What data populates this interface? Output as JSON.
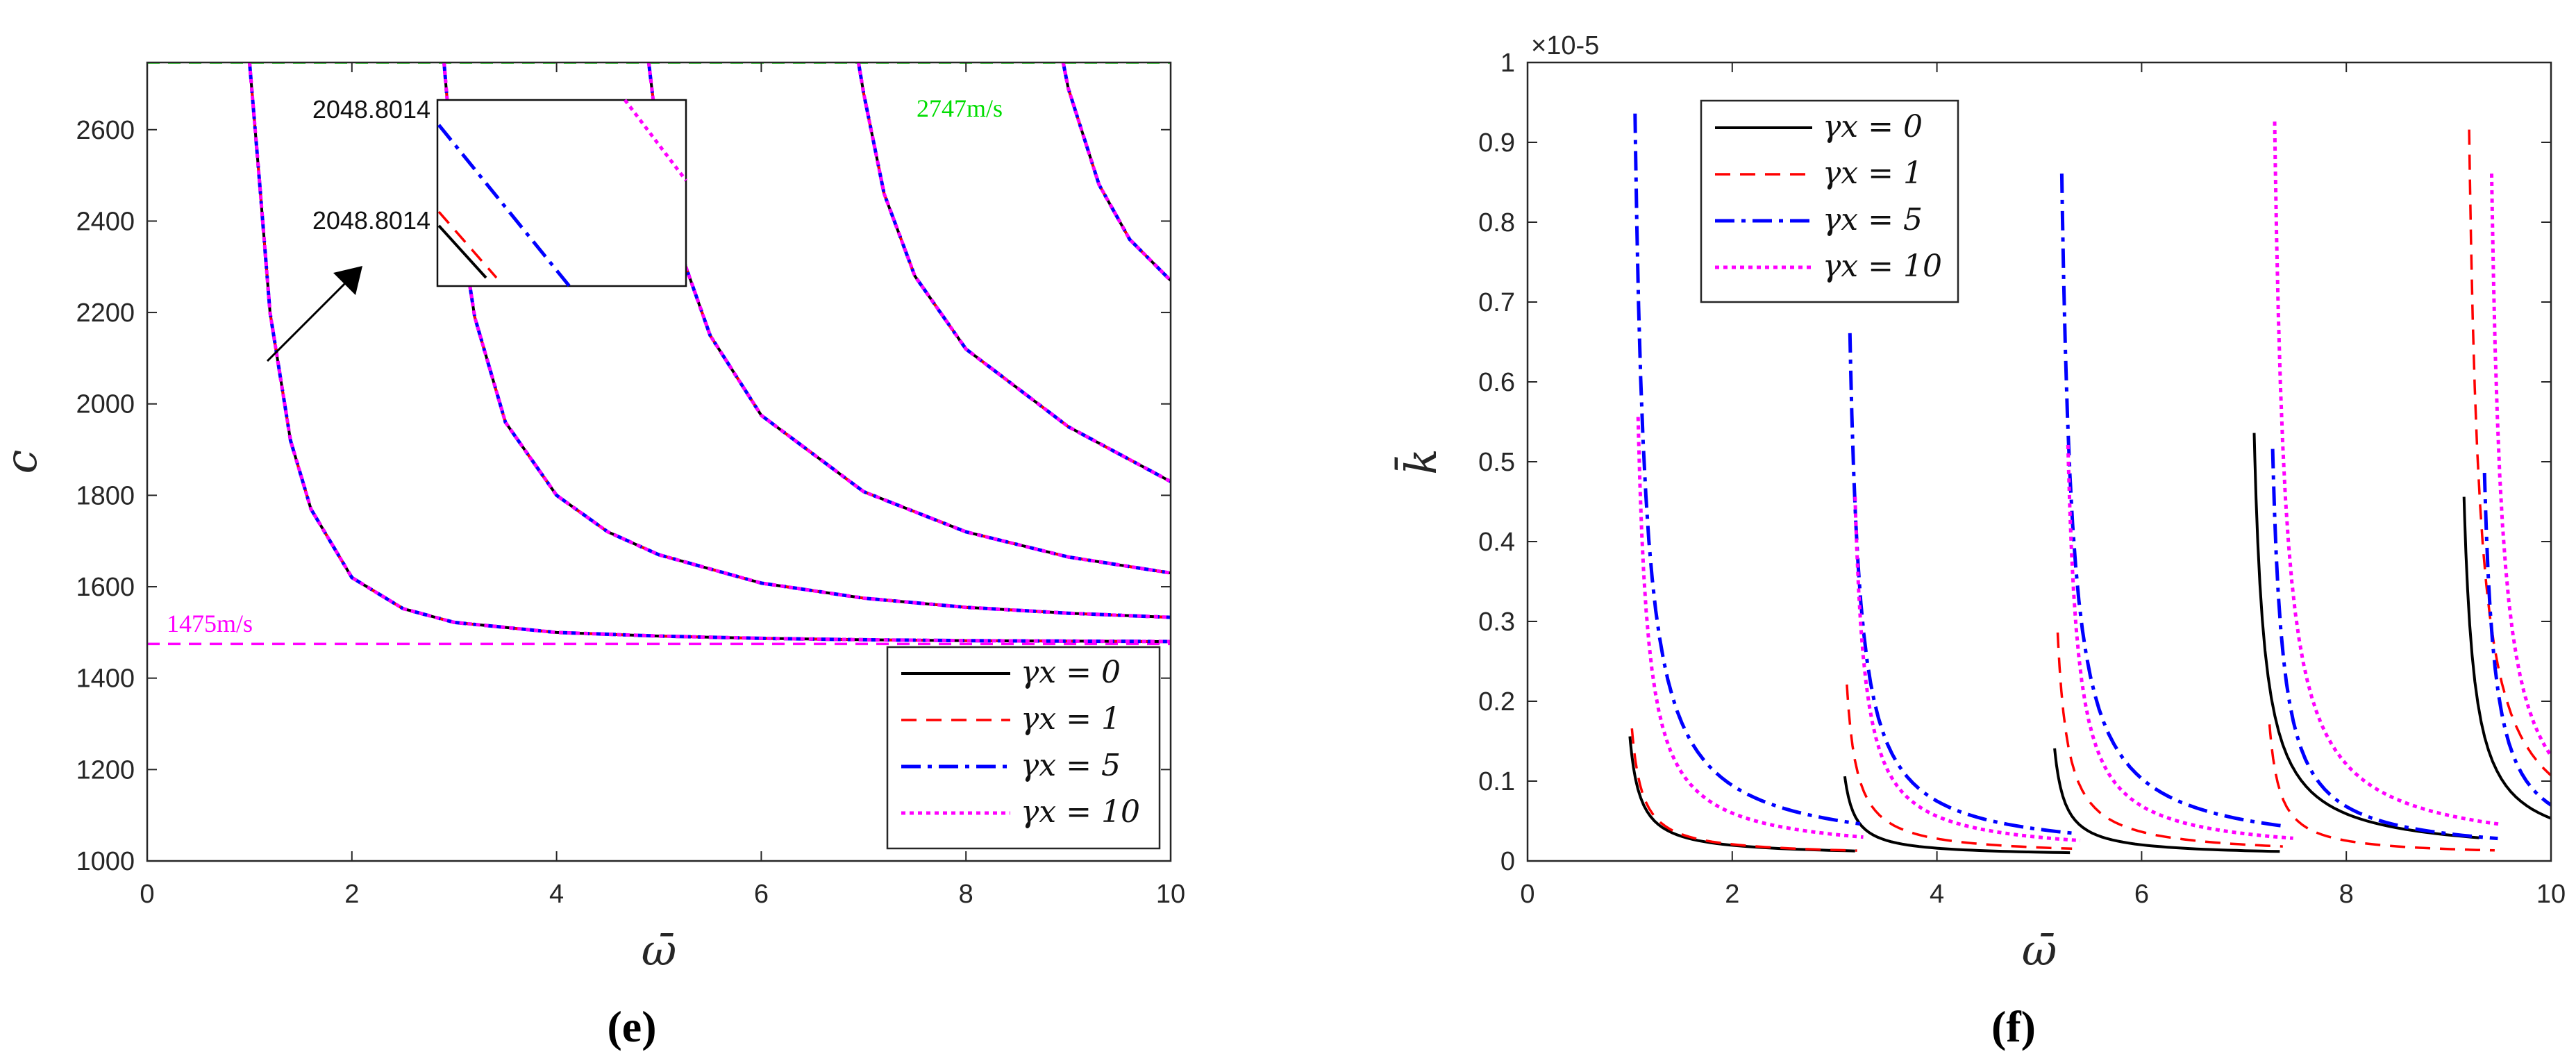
{
  "chart_data": [
    {
      "type": "line",
      "panel_label": "(e)",
      "xlabel": "ω̄",
      "ylabel": "c",
      "xlim": [
        0,
        10
      ],
      "ylim": [
        1000,
        2747
      ],
      "xticks": [
        "0",
        "2",
        "4",
        "6",
        "8",
        "10"
      ],
      "yticks": [
        "1000",
        "1200",
        "1400",
        "1600",
        "1800",
        "2000",
        "2200",
        "2400",
        "2600"
      ],
      "legend": {
        "position": "bottom-right"
      },
      "series": [
        {
          "name": "γx = 0",
          "color": "#000000",
          "style": "solid"
        },
        {
          "name": "γx = 1",
          "color": "#ff0000",
          "style": "dashed"
        },
        {
          "name": "γx = 5",
          "color": "#0000ff",
          "style": "dashdot"
        },
        {
          "name": "γx = 10",
          "color": "#ff00ff",
          "style": "dotted"
        }
      ],
      "modes": [
        {
          "x": [
            1.0,
            1.1,
            1.2,
            1.4,
            1.6,
            2.0,
            2.5,
            3.0,
            4.0,
            5.0,
            6.0,
            7.0,
            8.0,
            10.0
          ],
          "y": [
            2747,
            2480,
            2200,
            1920,
            1770,
            1620,
            1552,
            1522,
            1500,
            1492,
            1487,
            1484,
            1482,
            1480
          ]
        },
        {
          "x": [
            2.9,
            3.0,
            3.2,
            3.5,
            4.0,
            4.5,
            5.0,
            6.0,
            7.0,
            8.0,
            9.0,
            10.0
          ],
          "y": [
            2747,
            2480,
            2190,
            1960,
            1800,
            1720,
            1670,
            1608,
            1575,
            1555,
            1542,
            1533
          ]
        },
        {
          "x": [
            4.9,
            5.0,
            5.2,
            5.5,
            6.0,
            7.0,
            8.0,
            9.0,
            10.0
          ],
          "y": [
            2747,
            2560,
            2340,
            2150,
            1975,
            1808,
            1720,
            1665,
            1630
          ]
        },
        {
          "x": [
            6.95,
            7.0,
            7.2,
            7.5,
            8.0,
            9.0,
            10.0
          ],
          "y": [
            2747,
            2680,
            2460,
            2280,
            2120,
            1950,
            1830
          ]
        },
        {
          "x": [
            8.95,
            9.0,
            9.3,
            9.6,
            10.0
          ],
          "y": [
            2747,
            2690,
            2480,
            2360,
            2270
          ]
        }
      ],
      "reference_lines": [
        {
          "y": 2747,
          "label": "2747m/s",
          "color": "#00dd00"
        },
        {
          "y": 1475,
          "label": "1475m/s",
          "color": "#ff00ff"
        }
      ],
      "inset": {
        "label_top": "2048.8014",
        "label_bottom": "2048.8014"
      }
    },
    {
      "type": "line",
      "panel_label": "(f)",
      "xlabel": "ω̄",
      "ylabel": "k̄",
      "exponent": "×10-5",
      "xlim": [
        0,
        10
      ],
      "ylim": [
        0,
        1
      ],
      "xticks": [
        "0",
        "2",
        "4",
        "6",
        "8",
        "10"
      ],
      "yticks": [
        "0",
        "0.1",
        "0.2",
        "0.3",
        "0.4",
        "0.5",
        "0.6",
        "0.7",
        "0.8",
        "0.9",
        "1"
      ],
      "legend": {
        "position": "top-left"
      },
      "series": [
        {
          "name": "γx = 0",
          "color": "#000000",
          "style": "solid",
          "peaks": [
            [
              1.0,
              0.15
            ],
            [
              3.1,
              0.1
            ],
            [
              5.15,
              0.135
            ],
            [
              7.1,
              0.53
            ],
            [
              9.15,
              0.45
            ]
          ]
        },
        {
          "name": "γx = 1",
          "color": "#ff0000",
          "style": "dashed",
          "peaks": [
            [
              1.02,
              0.16
            ],
            [
              3.12,
              0.215
            ],
            [
              5.18,
              0.28
            ],
            [
              7.25,
              0.165
            ],
            [
              9.2,
              0.91
            ]
          ]
        },
        {
          "name": "γx = 5",
          "color": "#0000ff",
          "style": "dashdot",
          "peaks": [
            [
              1.05,
              0.93
            ],
            [
              3.15,
              0.655
            ],
            [
              5.22,
              0.855
            ],
            [
              7.28,
              0.51
            ],
            [
              9.35,
              0.48
            ]
          ]
        },
        {
          "name": "γx = 10",
          "color": "#ff00ff",
          "style": "dotted",
          "peaks": [
            [
              1.08,
              0.55
            ],
            [
              3.2,
              0.45
            ],
            [
              5.28,
              0.515
            ],
            [
              7.3,
              0.92
            ],
            [
              9.42,
              0.855
            ]
          ]
        }
      ]
    }
  ]
}
